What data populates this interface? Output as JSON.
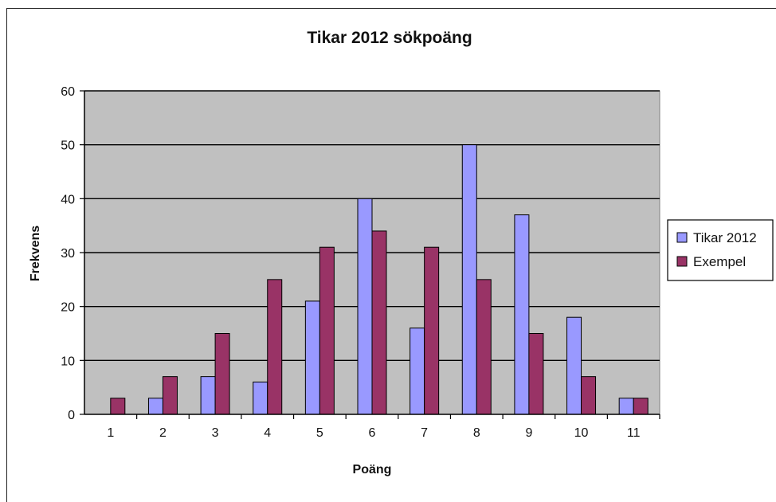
{
  "chart_data": {
    "type": "bar",
    "title": "Tikar 2012 sökpoäng",
    "xlabel": "Poäng",
    "ylabel": "Frekvens",
    "categories": [
      "1",
      "2",
      "3",
      "4",
      "5",
      "6",
      "7",
      "8",
      "9",
      "10",
      "11"
    ],
    "series": [
      {
        "name": "Tikar 2012",
        "color": "#9999ff",
        "values": [
          0,
          3,
          7,
          6,
          21,
          40,
          16,
          50,
          37,
          18,
          3
        ]
      },
      {
        "name": "Exempel",
        "color": "#993366",
        "values": [
          3,
          7,
          15,
          25,
          31,
          34,
          31,
          25,
          15,
          7,
          3
        ]
      }
    ],
    "ylim": [
      0,
      60
    ],
    "yticks": [
      0,
      10,
      20,
      30,
      40,
      50,
      60
    ],
    "grid": true,
    "plot_background": "#c0c0c0",
    "legend_position": "right"
  }
}
